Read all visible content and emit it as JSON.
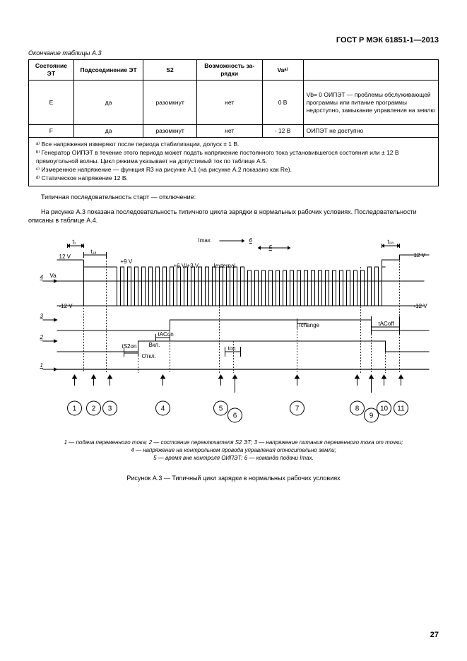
{
  "doc_header": "ГОСТ Р МЭК 61851-1—2013",
  "table_continuation": "Окончание таблицы А.3",
  "table": {
    "headers": [
      "Состояние ЭТ",
      "Подсоединение ЭТ",
      "S2",
      "Возможность за-\nрядки",
      "Vaᵃ⁾"
    ],
    "rows": [
      {
        "state": "E",
        "conn": "да",
        "s2": "разомкнут",
        "charge": "нет",
        "va": "0 В",
        "note": "Vb= 0 ОИПЭТ — проблемы обслуживающей программы или питание программы недоступно, замыкание управления на землю"
      },
      {
        "state": "F",
        "conn": "да",
        "s2": "разомкнут",
        "charge": "нет",
        "va": "- 12 В",
        "note": "ОИПЭТ не доступно"
      }
    ],
    "footnotes": [
      "ᵃ⁾ Все напряжения измеряют после периода стабилизации, допуск ± 1 В.",
      "ᵇ⁾ Генератор ОИПЭТ в течение этого периода может подать напряжение постоянного тока установившегося состояния или ± 12 В прямоугольной волны. Цикл режима указывает на допустимый ток по таблице А.5.",
      "ᶜ⁾ Измеренное напряжение — функция R3 на рисунке А.1 (на рисунке А.2 показано как Re).",
      "ᵈ⁾ Статическое напряжение 12 В."
    ]
  },
  "paragraphs": [
    "Типичная последовательность старт — отключение:",
    "На рисунке А.3 показана последовательность типичного цикла зарядки в нормальных рабочих условиях. Последовательности описаны в таблице А.4."
  ],
  "diagram": {
    "labels": {
      "t1": "t₁",
      "t1a": "t₁ₐ",
      "t2a": "t₂ₐ",
      "plus12": "12 V",
      "plus9": "+9 V",
      "plus6plus3": "+6 V/+3 V",
      "Iext": "Iexternal",
      "Imax": "Imax",
      "Va": "Va",
      "minus12": "-12 V",
      "minus12r": "-12 V",
      "Ichange": "Ichange",
      "tACon": "tACon",
      "tACoff": "tACoff",
      "tS2on": "tS2on",
      "ton": "ton",
      "Vkl": "Вкл.",
      "Otkl": "Откл.",
      "five": "5",
      "six": "6"
    },
    "side_labels": [
      "4",
      "3",
      "2",
      "1"
    ],
    "bottom_circles": [
      "1",
      "2",
      "3",
      "4",
      "5",
      "6",
      "7",
      "8",
      "9",
      "10",
      "11"
    ],
    "colors": {
      "line": "#000000",
      "bg": "#ffffff"
    }
  },
  "legend_lines": [
    "1 — подача переменного тока; 2 — состояние переключателя S2 ЭТ; 3 — напряжение питания переменного тока от точки;",
    "4 — напряжение на контрольном провода управления относительно земли;",
    "5 — время вне контроля ОИПЭТ; 6 — команда подачи Imax."
  ],
  "figure_caption": "Рисунок А.3 — Типичный цикл зарядки в нормальных рабочих условиях",
  "page_number": "27"
}
